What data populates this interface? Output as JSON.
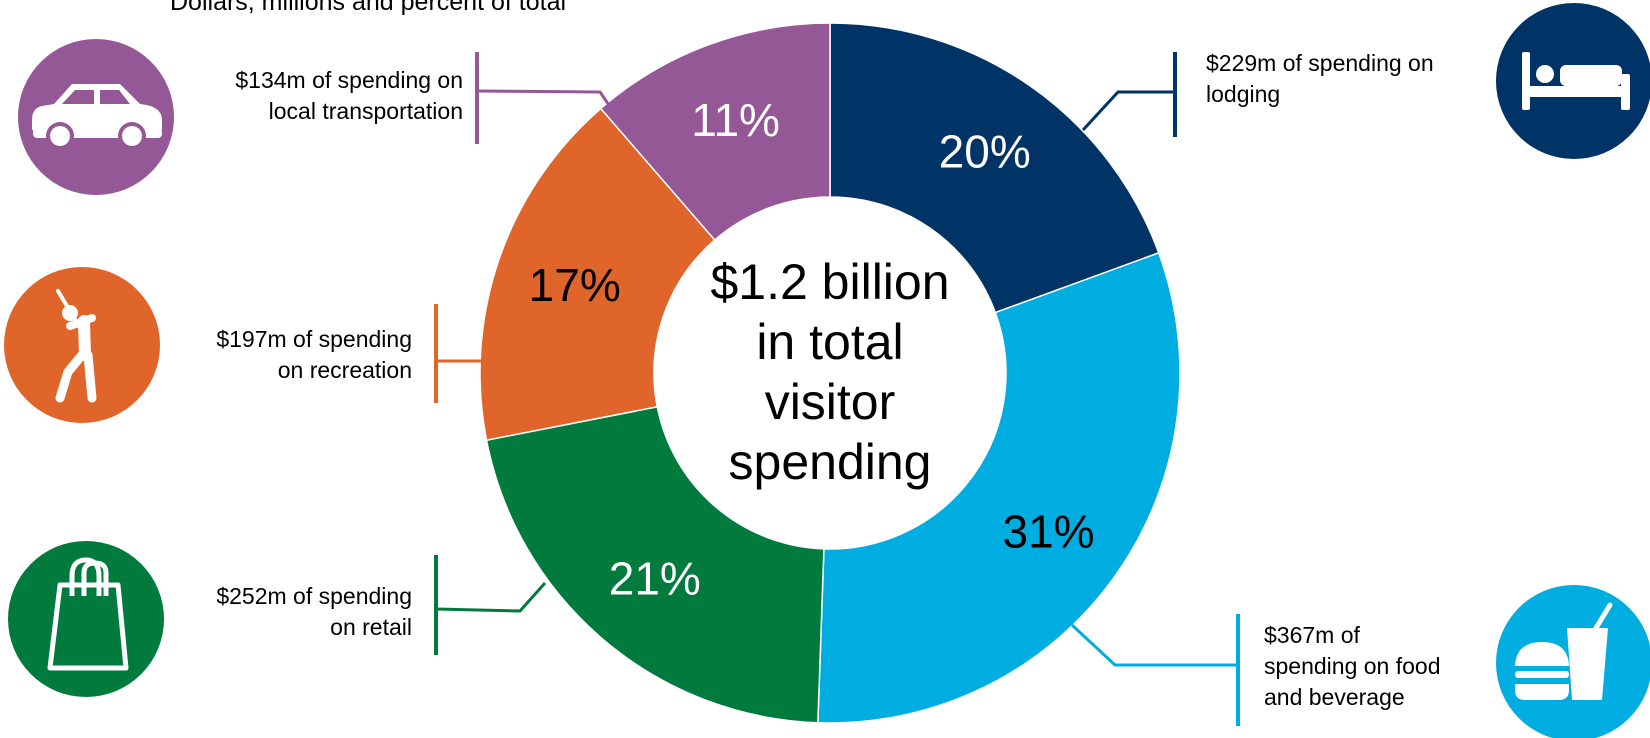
{
  "subtitle": "Dollars, millions and percent of total",
  "center_label": [
    "$1.2 billion",
    "in total",
    "visitor",
    "spending"
  ],
  "chart_data": {
    "type": "pie",
    "subtitle": "Dollars, millions and percent of total",
    "center_label": "$1.2 billion in total visitor spending",
    "slices": [
      {
        "key": "lodging",
        "value": 229,
        "percent": 20,
        "percent_label": "20%",
        "color": "#003366",
        "label_color": "#ffffff",
        "callout": [
          "$229m of spending on",
          "lodging"
        ],
        "icon": "bed-icon"
      },
      {
        "key": "food-beverage",
        "value": 367,
        "percent": 31,
        "percent_label": "31%",
        "color": "#00ade0",
        "label_color": "#000000",
        "callout": [
          "$367m of",
          "spending on food",
          "and beverage"
        ],
        "icon": "fast-food-icon"
      },
      {
        "key": "retail",
        "value": 252,
        "percent": 21,
        "percent_label": "21%",
        "color": "#007a3d",
        "label_color": "#ffffff",
        "callout": [
          "$252m of spending",
          "on retail"
        ],
        "icon": "shopping-bag-icon"
      },
      {
        "key": "recreation",
        "value": 197,
        "percent": 17,
        "percent_label": "17%",
        "color": "#e0652b",
        "label_color": "#000000",
        "callout": [
          "$197m of spending",
          "on recreation"
        ],
        "icon": "golfer-icon"
      },
      {
        "key": "local-transportation",
        "value": 134,
        "percent": 11,
        "percent_label": "11%",
        "color": "#955896",
        "label_color": "#ffffff",
        "callout": [
          "$134m of spending on",
          "local transportation"
        ],
        "icon": "car-icon"
      }
    ]
  }
}
